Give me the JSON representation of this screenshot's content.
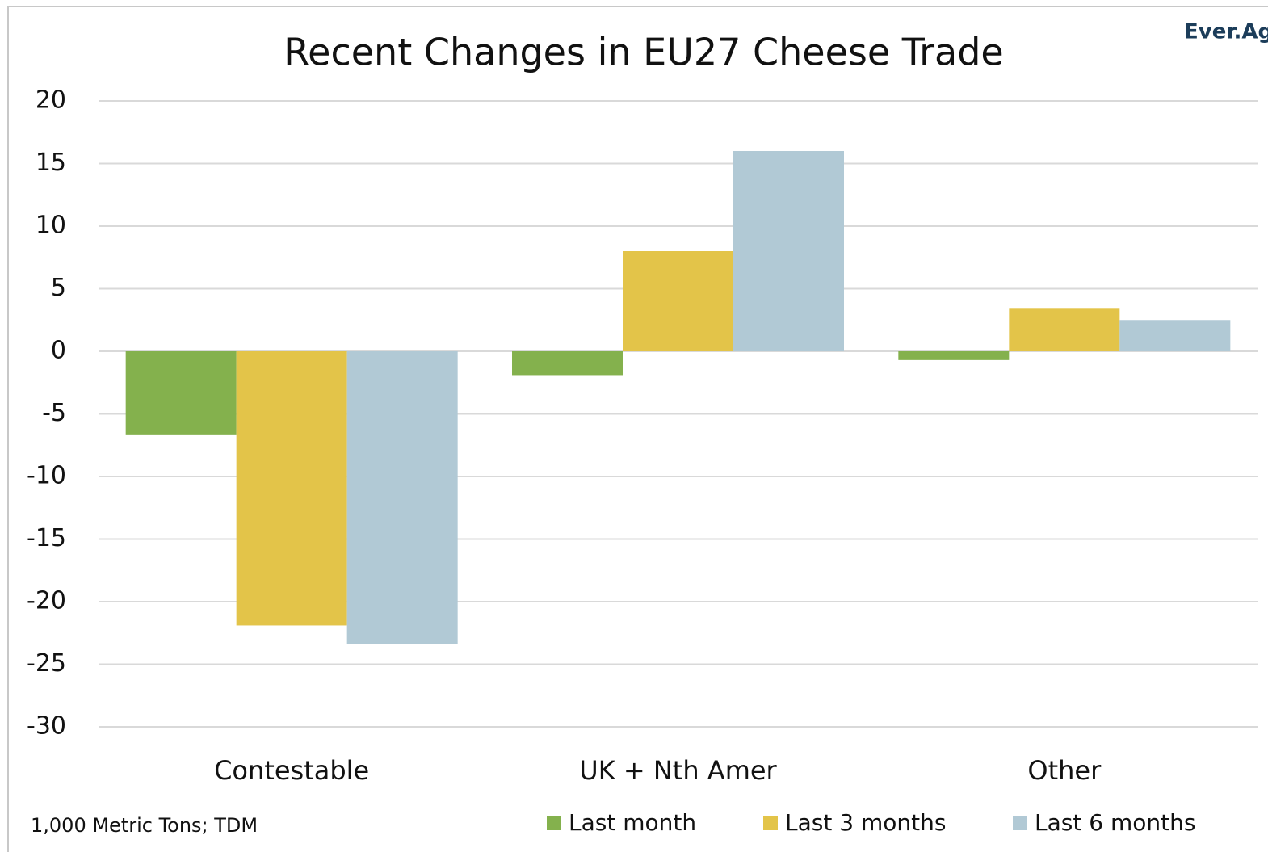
{
  "chart_data": {
    "type": "bar",
    "title": "Recent Changes in EU27 Cheese Trade",
    "note": "1,000 Metric Tons; TDM",
    "logo": "Ever.Ag",
    "categories": [
      "Contestable",
      "UK + Nth Amer",
      "Other"
    ],
    "series": [
      {
        "name": "Last month",
        "color": "#84b14d",
        "values": [
          -6.7,
          -1.9,
          -0.7
        ]
      },
      {
        "name": "Last 3 months",
        "color": "#e3c449",
        "values": [
          -21.9,
          8.0,
          3.4
        ]
      },
      {
        "name": "Last 6 months",
        "color": "#b1c9d5",
        "values": [
          -23.4,
          16.0,
          2.5
        ]
      }
    ],
    "ylim": [
      -30,
      20
    ],
    "yticks": [
      -30,
      -25,
      -20,
      -15,
      -10,
      -5,
      0,
      5,
      10,
      15,
      20
    ],
    "grid": true,
    "legend": "bottom"
  }
}
